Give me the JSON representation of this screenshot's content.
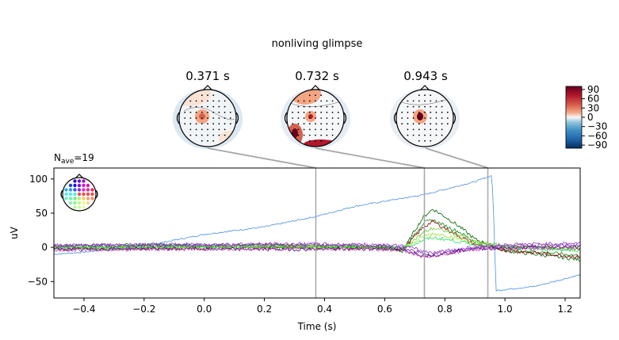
{
  "figure": {
    "suptitle": "nonliving glimpse",
    "nave_label": "N",
    "nave_sub": "ave",
    "nave_value": "=19"
  },
  "topomaps": [
    {
      "time_label": "0.371 s",
      "time": 0.371
    },
    {
      "time_label": "0.732 s",
      "time": 0.732
    },
    {
      "time_label": "0.943 s",
      "time": 0.943
    }
  ],
  "colorbar": {
    "ticks": [
      90,
      60,
      30,
      0,
      -30,
      -60,
      -90
    ],
    "tick_labels": [
      "90",
      "60",
      "30",
      "0",
      "−30",
      "−60",
      "−90"
    ],
    "range": [
      -100,
      100
    ],
    "colormap": "RdBu_r"
  },
  "chart_data": {
    "type": "line",
    "xlabel": "Time (s)",
    "ylabel": "uV",
    "xlim": [
      -0.5,
      1.25
    ],
    "ylim": [
      -74,
      116
    ],
    "xticks": [
      -0.4,
      -0.2,
      0.0,
      0.2,
      0.4,
      0.6,
      0.8,
      1.0,
      1.2
    ],
    "xtick_labels": [
      "−0.4",
      "−0.2",
      "0.0",
      "0.2",
      "0.4",
      "0.6",
      "0.8",
      "1.0",
      "1.2"
    ],
    "yticks": [
      100,
      50,
      0,
      -50
    ],
    "ytick_labels": [
      "100",
      "50",
      "0",
      "−50"
    ],
    "markers": [
      0.371,
      0.732,
      0.943
    ],
    "grid": false,
    "series": [
      {
        "color": "#4a90e2",
        "x": [
          -0.5,
          -0.4,
          -0.2,
          0.0,
          0.2,
          0.37,
          0.5,
          0.73,
          0.9,
          0.955,
          0.96,
          0.97,
          1.1,
          1.25
        ],
        "y": [
          -10,
          -7,
          2,
          19,
          30,
          45,
          60,
          77,
          96,
          105,
          80,
          -63,
          -57,
          -40
        ]
      },
      {
        "color": "#006400",
        "x": [
          -0.5,
          -0.2,
          0.3,
          0.6,
          0.66,
          0.7,
          0.73,
          0.76,
          0.8,
          0.85,
          0.9,
          1.0,
          1.1,
          1.25
        ],
        "y": [
          0,
          2,
          3,
          0,
          -6,
          25,
          45,
          56,
          45,
          30,
          12,
          -5,
          -10,
          -18
        ]
      },
      {
        "color": "#228b22",
        "x": [
          -0.5,
          -0.2,
          0.3,
          0.6,
          0.66,
          0.7,
          0.73,
          0.76,
          0.8,
          0.85,
          0.9,
          1.0,
          1.1,
          1.25
        ],
        "y": [
          2,
          4,
          1,
          1,
          -4,
          20,
          36,
          40,
          32,
          22,
          8,
          -2,
          -6,
          -12
        ]
      },
      {
        "color": "#8b0000",
        "x": [
          -0.5,
          -0.2,
          0.3,
          0.6,
          0.66,
          0.7,
          0.73,
          0.76,
          0.8,
          0.85,
          0.9,
          1.0,
          1.1,
          1.25
        ],
        "y": [
          -2,
          -1,
          0,
          -1,
          -3,
          16,
          30,
          38,
          28,
          16,
          4,
          -4,
          -8,
          -14
        ]
      },
      {
        "color": "#66cc33",
        "x": [
          -0.5,
          -0.2,
          0.3,
          0.6,
          0.66,
          0.7,
          0.73,
          0.76,
          0.8,
          0.85,
          0.9,
          1.0,
          1.1,
          1.25
        ],
        "y": [
          0,
          1,
          2,
          0,
          -2,
          12,
          22,
          28,
          24,
          18,
          8,
          2,
          0,
          -4
        ]
      },
      {
        "color": "#99e633",
        "x": [
          -0.5,
          -0.2,
          0.3,
          0.6,
          0.66,
          0.7,
          0.73,
          0.76,
          0.8,
          0.85,
          0.9,
          1.0,
          1.1,
          1.25
        ],
        "y": [
          1,
          -1,
          2,
          1,
          0,
          8,
          16,
          20,
          18,
          12,
          6,
          1,
          2,
          0
        ]
      },
      {
        "color": "#22dd55",
        "x": [
          -0.5,
          -0.2,
          0.3,
          0.6,
          0.66,
          0.7,
          0.73,
          0.76,
          0.8,
          0.85,
          0.9,
          1.0,
          1.1,
          1.25
        ],
        "y": [
          -1,
          0,
          0,
          0,
          0,
          5,
          11,
          14,
          12,
          8,
          4,
          0,
          -2,
          -4
        ]
      },
      {
        "color": "#7b2fbf",
        "x": [
          -0.5,
          -0.2,
          0.3,
          0.6,
          0.66,
          0.7,
          0.73,
          0.76,
          0.8,
          0.85,
          0.9,
          1.0,
          1.1,
          1.25
        ],
        "y": [
          2,
          3,
          4,
          2,
          -1,
          -6,
          -10,
          -10,
          -8,
          -4,
          0,
          2,
          3,
          3
        ]
      },
      {
        "color": "#4b0082",
        "x": [
          -0.5,
          -0.2,
          0.3,
          0.6,
          0.66,
          0.7,
          0.73,
          0.76,
          0.8,
          0.85,
          0.9,
          1.0,
          1.1,
          1.25
        ],
        "y": [
          -3,
          -2,
          -3,
          -2,
          -4,
          -8,
          -12,
          -11,
          -9,
          -5,
          -2,
          -1,
          0,
          1
        ]
      },
      {
        "color": "#9933cc",
        "x": [
          -0.5,
          -0.2,
          0.3,
          0.6,
          0.66,
          0.7,
          0.73,
          0.76,
          0.8,
          0.85,
          0.9,
          1.0,
          1.1,
          1.25
        ],
        "y": [
          3,
          4,
          5,
          4,
          2,
          -2,
          -6,
          -7,
          -5,
          -2,
          1,
          4,
          5,
          6
        ]
      },
      {
        "color": "#bb44aa",
        "x": [
          -0.5,
          -0.2,
          0.3,
          0.6,
          0.66,
          0.7,
          0.73,
          0.76,
          0.8,
          0.85,
          0.9,
          1.0,
          1.1,
          1.25
        ],
        "y": [
          -4,
          -3,
          -2,
          -3,
          -5,
          -10,
          -14,
          -13,
          -10,
          -6,
          -3,
          -2,
          -1,
          -1
        ]
      }
    ]
  }
}
